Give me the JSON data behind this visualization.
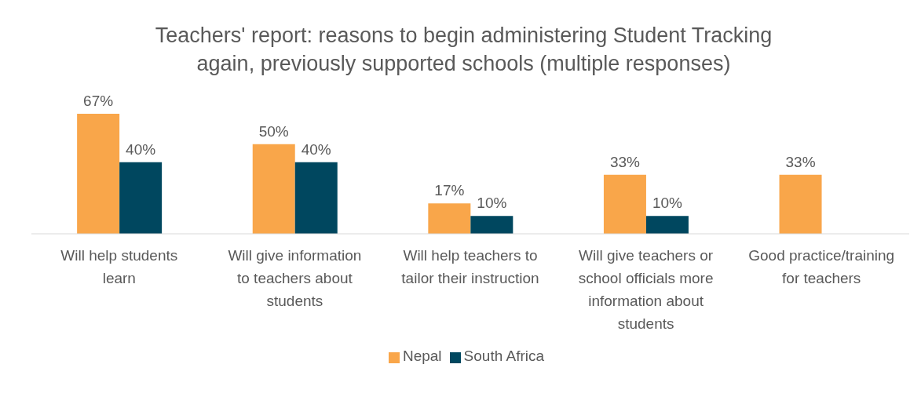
{
  "chart_data": {
    "type": "bar",
    "title": "Teachers' report: reasons to begin administering Student Tracking again, previously supported schools (multiple responses)",
    "categories": [
      "Will help students learn",
      "Will give information to teachers about students",
      "Will help teachers to tailor their instruction",
      "Will give teachers or school officials more information about students",
      "Good practice/training for teachers"
    ],
    "series": [
      {
        "name": "Nepal",
        "color": "#f9a64a",
        "values": [
          67,
          50,
          17,
          33,
          33
        ],
        "value_labels": [
          "67%",
          "50%",
          "17%",
          "33%",
          "33%"
        ]
      },
      {
        "name": "South Africa",
        "color": "#00475f",
        "values": [
          40,
          40,
          10,
          10,
          null
        ],
        "value_labels": [
          "40%",
          "40%",
          "10%",
          "10%",
          null
        ]
      }
    ],
    "legend": "bottom"
  }
}
